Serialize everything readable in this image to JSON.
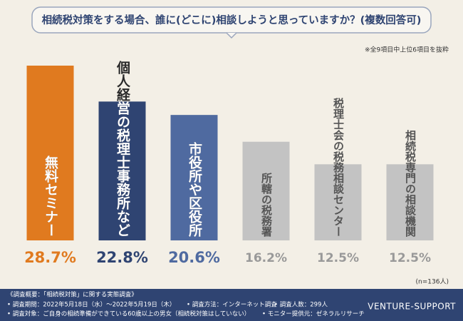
{
  "chart_data": {
    "type": "bar",
    "title": "相続税対策をする場合、誰に(どこに)相談しようと思っていますか？(複数回答可)",
    "note": "※全9項目中上位6項目を抜粋",
    "sample": "(n=136人)",
    "categories": [
      "無料セミナー",
      "個人経営の税理士事務所など",
      "市役所や区役所",
      "所轄の税務署",
      "税理士会の税務相談センター",
      "相続税専門の相談機関"
    ],
    "values": [
      28.7,
      22.8,
      20.6,
      16.2,
      12.5,
      12.5
    ],
    "value_labels": [
      "28.7%",
      "22.8%",
      "20.6%",
      "16.2%",
      "12.5%",
      "12.5%"
    ],
    "colors": [
      "#e07a1f",
      "#2f4472",
      "#4f6aa0",
      "#c3c3c3",
      "#c3c3c3",
      "#c3c3c3"
    ]
  },
  "footer": {
    "heading": "《調査概要：「相続税対策」に関する実態調査》",
    "items": [
      "• 調査期間：2022年5月18日（水）〜2022年5月19日（木）",
      "• 調査方法：インターネット調査",
      "• 調査人数：299人",
      "• 調査対象：ご自身の相続準備ができている60歳以上の男女（相続税対策はしていない）",
      "• モニター提供元：ゼネラルリサーチ"
    ],
    "brand": "VENTURE-SUPPORT"
  }
}
